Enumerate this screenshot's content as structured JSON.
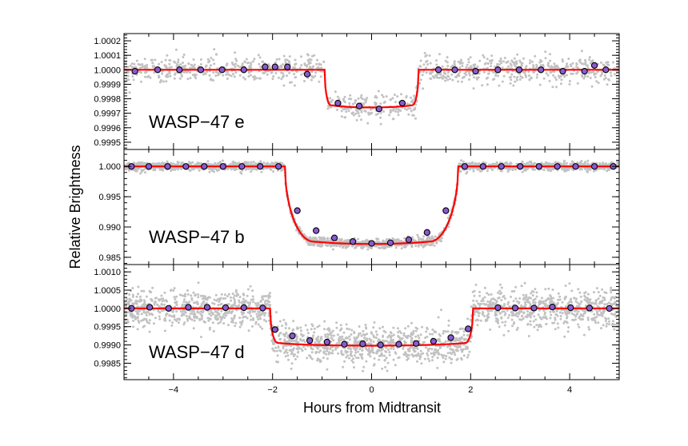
{
  "chart_data": {
    "type": "scatter",
    "ylabel": "Relative Brightness",
    "xlabel": "Hours from Midtransit",
    "xlim": [
      -5,
      5
    ],
    "xticks": [
      -4,
      -2,
      0,
      2,
      4
    ],
    "xtick_labels": [
      "−4",
      "−2",
      "0",
      "2",
      "4"
    ],
    "colors": {
      "raw_points": "#c2c2c2",
      "binned_fill": "#8a5ad0",
      "binned_edge": "#000000",
      "model_line": "#ff0000"
    },
    "panels": [
      {
        "label": "WASP−47 e",
        "ylim": [
          0.99945,
          1.00025
        ],
        "yticks": [
          0.9995,
          0.9996,
          0.9997,
          0.9998,
          0.9999,
          1.0,
          1.0001,
          1.0002
        ],
        "ytick_labels": [
          "0.9995",
          "0.9996",
          "0.9997",
          "0.9998",
          "0.9999",
          "1.0000",
          "1.0001",
          "1.0002"
        ],
        "model": {
          "t1": -0.95,
          "t2": 0.95,
          "ingress": 0.12,
          "depth": 0.00026
        },
        "raw_scatter_sigma": 4.5e-05,
        "binned": [
          {
            "x": -4.78,
            "y": 0.99999
          },
          {
            "x": -4.32,
            "y": 1.0
          },
          {
            "x": -3.88,
            "y": 1.0
          },
          {
            "x": -3.45,
            "y": 1.0
          },
          {
            "x": -3.02,
            "y": 1.0
          },
          {
            "x": -2.58,
            "y": 1.0
          },
          {
            "x": -2.15,
            "y": 1.00002
          },
          {
            "x": -1.95,
            "y": 1.00002
          },
          {
            "x": -1.7,
            "y": 1.00002
          },
          {
            "x": -1.3,
            "y": 0.99997
          },
          {
            "x": -0.68,
            "y": 0.99977
          },
          {
            "x": -0.25,
            "y": 0.99975
          },
          {
            "x": 0.15,
            "y": 0.99973
          },
          {
            "x": 0.62,
            "y": 0.99977
          },
          {
            "x": 1.35,
            "y": 1.0
          },
          {
            "x": 1.68,
            "y": 1.0
          },
          {
            "x": 2.1,
            "y": 0.99999
          },
          {
            "x": 2.55,
            "y": 1.0
          },
          {
            "x": 2.98,
            "y": 1.0
          },
          {
            "x": 3.42,
            "y": 1.0
          },
          {
            "x": 3.86,
            "y": 0.99999
          },
          {
            "x": 4.3,
            "y": 0.99999
          },
          {
            "x": 4.5,
            "y": 1.00003
          },
          {
            "x": 4.73,
            "y": 1.0
          }
        ]
      },
      {
        "label": "WASP−47 b",
        "ylim": [
          0.9838,
          1.0028
        ],
        "yticks": [
          0.985,
          0.99,
          0.995,
          1.0
        ],
        "ytick_labels": [
          "0.985",
          "0.990",
          "0.995",
          "1.000"
        ],
        "model": {
          "t1": -1.75,
          "t2": 1.75,
          "ingress": 0.55,
          "depth": 0.0128
        },
        "raw_scatter_sigma": 0.00035,
        "binned": [
          {
            "x": -4.85,
            "y": 1.0
          },
          {
            "x": -4.5,
            "y": 1.0
          },
          {
            "x": -4.12,
            "y": 1.0
          },
          {
            "x": -3.75,
            "y": 1.0
          },
          {
            "x": -3.38,
            "y": 1.0
          },
          {
            "x": -3.0,
            "y": 1.0
          },
          {
            "x": -2.62,
            "y": 1.0
          },
          {
            "x": -2.25,
            "y": 1.0
          },
          {
            "x": -1.88,
            "y": 1.0
          },
          {
            "x": -1.5,
            "y": 0.9927
          },
          {
            "x": -1.12,
            "y": 0.9894
          },
          {
            "x": -0.75,
            "y": 0.9882
          },
          {
            "x": -0.38,
            "y": 0.9876
          },
          {
            "x": 0.0,
            "y": 0.9873
          },
          {
            "x": 0.38,
            "y": 0.9874
          },
          {
            "x": 0.75,
            "y": 0.9879
          },
          {
            "x": 1.12,
            "y": 0.9891
          },
          {
            "x": 1.5,
            "y": 0.9927
          },
          {
            "x": 1.88,
            "y": 1.0
          },
          {
            "x": 2.25,
            "y": 1.0
          },
          {
            "x": 2.62,
            "y": 1.0
          },
          {
            "x": 3.0,
            "y": 1.0
          },
          {
            "x": 3.38,
            "y": 1.0
          },
          {
            "x": 3.75,
            "y": 1.0
          },
          {
            "x": 4.12,
            "y": 1.0
          },
          {
            "x": 4.5,
            "y": 1.0
          },
          {
            "x": 4.88,
            "y": 1.0
          }
        ]
      },
      {
        "label": "WASP−47 d",
        "ylim": [
          0.99805,
          1.0012
        ],
        "yticks": [
          0.9985,
          0.999,
          0.9995,
          1.0,
          1.0005,
          1.001
        ],
        "ytick_labels": [
          "0.9985",
          "0.9990",
          "0.9995",
          "1.0000",
          "1.0005",
          "1.0010"
        ],
        "model": {
          "t1": -2.05,
          "t2": 2.05,
          "ingress": 0.15,
          "depth": 0.00102
        },
        "raw_scatter_sigma": 0.00025,
        "binned": [
          {
            "x": -4.85,
            "y": 1.0
          },
          {
            "x": -4.48,
            "y": 1.00003
          },
          {
            "x": -4.1,
            "y": 1.0
          },
          {
            "x": -3.7,
            "y": 1.00003
          },
          {
            "x": -3.32,
            "y": 1.00003
          },
          {
            "x": -2.95,
            "y": 1.00002
          },
          {
            "x": -2.58,
            "y": 1.00002
          },
          {
            "x": -2.2,
            "y": 1.00001
          },
          {
            "x": -1.95,
            "y": 0.99942
          },
          {
            "x": -1.6,
            "y": 0.99925
          },
          {
            "x": -1.25,
            "y": 0.99912
          },
          {
            "x": -0.9,
            "y": 0.99908
          },
          {
            "x": -0.55,
            "y": 0.99902
          },
          {
            "x": -0.18,
            "y": 0.99903
          },
          {
            "x": 0.18,
            "y": 0.999
          },
          {
            "x": 0.55,
            "y": 0.99902
          },
          {
            "x": 0.9,
            "y": 0.99904
          },
          {
            "x": 1.25,
            "y": 0.9991
          },
          {
            "x": 1.6,
            "y": 0.9992
          },
          {
            "x": 1.95,
            "y": 0.99944
          },
          {
            "x": 2.55,
            "y": 1.00002
          },
          {
            "x": 2.9,
            "y": 1.00001
          },
          {
            "x": 3.28,
            "y": 1.00001
          },
          {
            "x": 3.65,
            "y": 1.00004
          },
          {
            "x": 4.02,
            "y": 1.00002
          },
          {
            "x": 4.4,
            "y": 1.00001
          },
          {
            "x": 4.8,
            "y": 1.0
          }
        ]
      }
    ]
  }
}
